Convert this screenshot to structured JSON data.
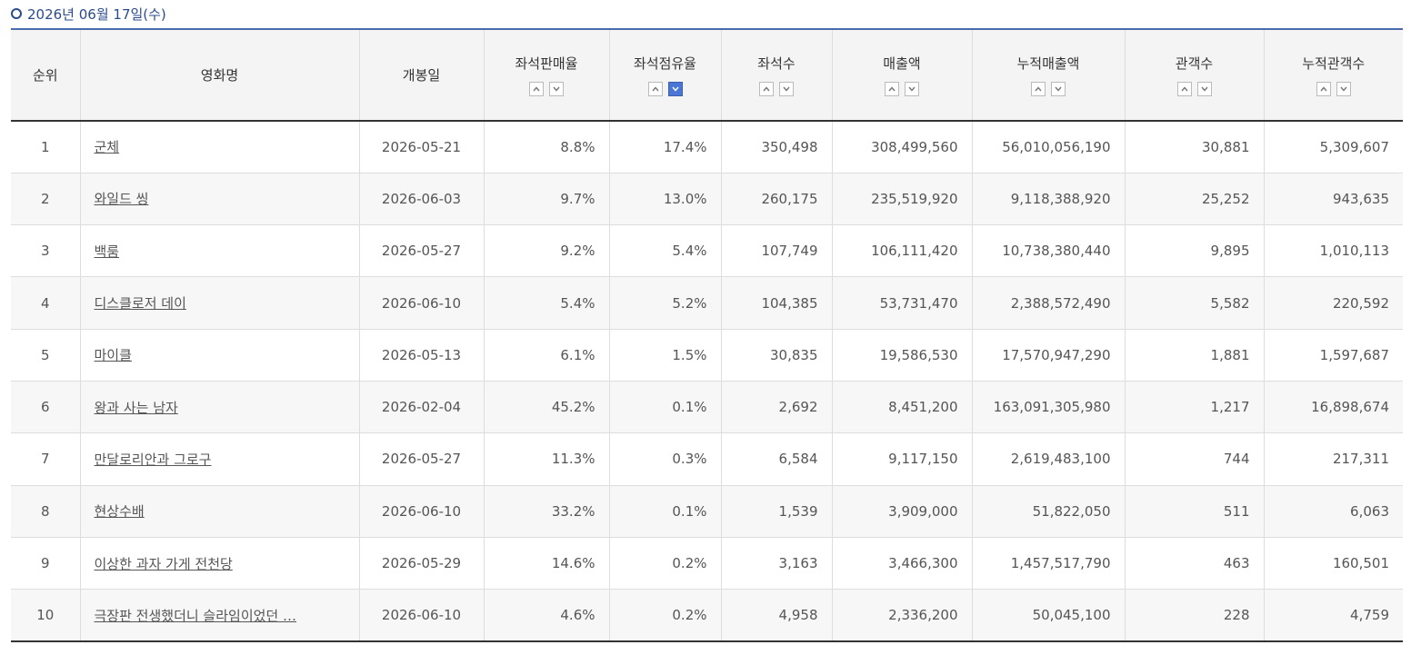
{
  "header": {
    "title": "2026년 06월 17일(수)"
  },
  "table": {
    "columns": [
      "순위",
      "영화명",
      "개봉일",
      "좌석판매율",
      "좌석점유율",
      "좌석수",
      "매출액",
      "누적매출액",
      "관객수",
      "누적관객수"
    ],
    "rows": [
      [
        "1",
        "군체",
        "2026-05-21",
        "8.8%",
        "17.4%",
        "350,498",
        "308,499,560",
        "56,010,056,190",
        "30,881",
        "5,309,607"
      ],
      [
        "2",
        "와일드 씽",
        "2026-06-03",
        "9.7%",
        "13.0%",
        "260,175",
        "235,519,920",
        "9,118,388,920",
        "25,252",
        "943,635"
      ],
      [
        "3",
        "백룸",
        "2026-05-27",
        "9.2%",
        "5.4%",
        "107,749",
        "106,111,420",
        "10,738,380,440",
        "9,895",
        "1,010,113"
      ],
      [
        "4",
        "디스클로저 데이",
        "2026-06-10",
        "5.4%",
        "5.2%",
        "104,385",
        "53,731,470",
        "2,388,572,490",
        "5,582",
        "220,592"
      ],
      [
        "5",
        "마이클",
        "2026-05-13",
        "6.1%",
        "1.5%",
        "30,835",
        "19,586,530",
        "17,570,947,290",
        "1,881",
        "1,597,687"
      ],
      [
        "6",
        "왕과 사는 남자",
        "2026-02-04",
        "45.2%",
        "0.1%",
        "2,692",
        "8,451,200",
        "163,091,305,980",
        "1,217",
        "16,898,674"
      ],
      [
        "7",
        "만달로리안과 그로구",
        "2026-05-27",
        "11.3%",
        "0.3%",
        "6,584",
        "9,117,150",
        "2,619,483,100",
        "744",
        "217,311"
      ],
      [
        "8",
        "현상수배",
        "2026-06-10",
        "33.2%",
        "0.1%",
        "1,539",
        "3,909,000",
        "51,822,050",
        "511",
        "6,063"
      ],
      [
        "9",
        "이상한 과자 가게 전천당",
        "2026-05-29",
        "14.6%",
        "0.2%",
        "3,163",
        "3,466,300",
        "1,457,517,790",
        "463",
        "160,501"
      ],
      [
        "10",
        "극장판 전생했더니 슬라임이었던 …",
        "2026-06-10",
        "4.6%",
        "0.2%",
        "4,958",
        "2,336,200",
        "50,045,100",
        "228",
        "4,759"
      ]
    ]
  }
}
